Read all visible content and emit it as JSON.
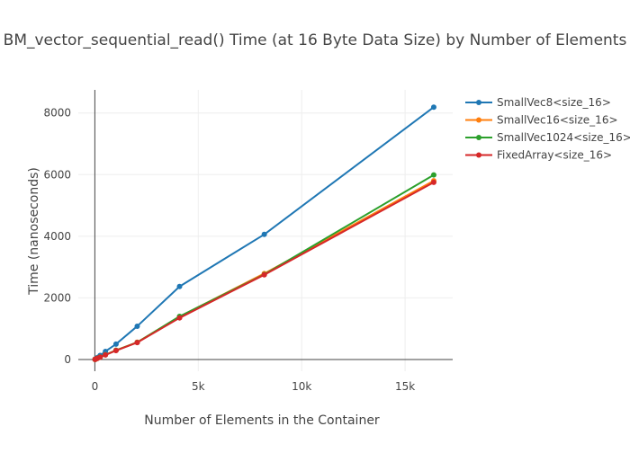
{
  "chart_data": {
    "type": "line",
    "title": "BM_vector_sequential_read() Time (at 16 Byte Data Size) by Number of Elements",
    "xlabel": "Number of Elements in the Container",
    "ylabel": "Time (nanoseconds)",
    "xlim": [
      -800,
      17300
    ],
    "ylim": [
      -380,
      8750
    ],
    "x_ticks": [
      0,
      5000,
      10000,
      15000
    ],
    "x_tick_labels": [
      "0",
      "5k",
      "10k",
      "15k"
    ],
    "y_ticks": [
      0,
      2000,
      4000,
      6000,
      8000
    ],
    "y_tick_labels": [
      "0",
      "2000",
      "4000",
      "6000",
      "8000"
    ],
    "grid": true,
    "legend_position": "right",
    "x": [
      8,
      16,
      32,
      64,
      128,
      256,
      512,
      1024,
      2048,
      4096,
      8192,
      16384
    ],
    "series": [
      {
        "name": "SmallVec8<size_16>",
        "color": "#1f77b4",
        "values": [
          5,
          9,
          17,
          33,
          66,
          131,
          262,
          500,
          1080,
          2370,
          4060,
          8190
        ]
      },
      {
        "name": "SmallVec16<size_16>",
        "color": "#ff7f0e",
        "values": [
          3,
          6,
          11,
          21,
          40,
          79,
          155,
          300,
          560,
          1390,
          2790,
          5800
        ]
      },
      {
        "name": "SmallVec1024<size_16>",
        "color": "#2ca02c",
        "values": [
          3,
          6,
          11,
          20,
          39,
          78,
          152,
          298,
          555,
          1400,
          2760,
          5990
        ]
      },
      {
        "name": "FixedArray<size_16>",
        "color": "#d62728",
        "values": [
          3,
          5,
          10,
          20,
          38,
          75,
          148,
          290,
          550,
          1350,
          2750,
          5750
        ]
      }
    ]
  }
}
